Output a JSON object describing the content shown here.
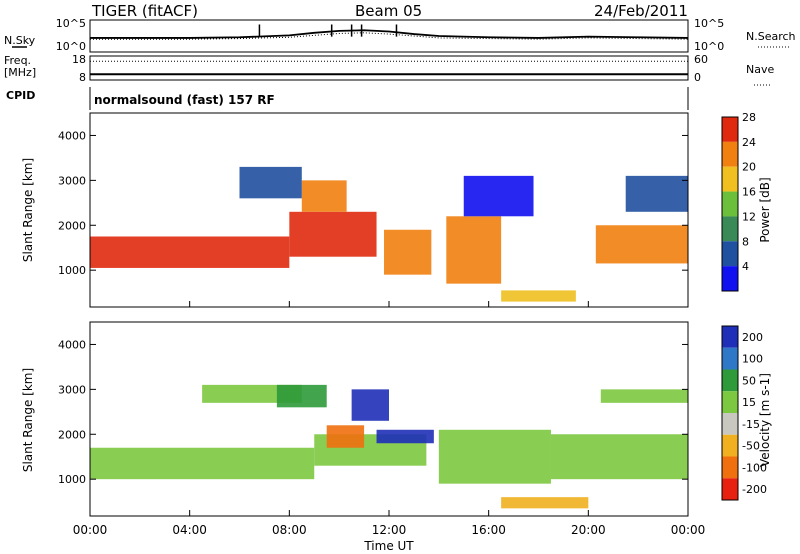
{
  "header": {
    "station": "TIGER (fitACF)",
    "beam": "Beam 05",
    "date": "24/Feb/2011"
  },
  "panel_labels": {
    "nsky": "N.Sky",
    "nsearch": "N.Search",
    "freq": "Freq.",
    "freq_unit": "[MHz]",
    "nave": "Nave",
    "cpid": "CPID",
    "cpid_value": "normalsound (fast) 157 RF"
  },
  "chart_data": [
    {
      "type": "line",
      "panel": "noise",
      "left_ticks": [
        "10^5",
        "10^0"
      ],
      "right_ticks": [
        "10^5",
        "10^0"
      ],
      "series": [
        {
          "name": "N.Sky",
          "x": [
            0,
            2,
            4,
            6,
            8,
            9,
            10,
            11,
            12,
            13,
            14,
            16,
            18,
            20,
            22,
            24
          ],
          "values": [
            2.2,
            2.2,
            2.2,
            2.3,
            2.6,
            3.0,
            3.3,
            3.4,
            3.2,
            2.8,
            2.5,
            2.3,
            2.2,
            2.4,
            2.3,
            2.2
          ]
        },
        {
          "name": "N.Search",
          "x": [
            0,
            2,
            4,
            6,
            8,
            9,
            10,
            11,
            12,
            13,
            14,
            16,
            18,
            20,
            22,
            24
          ],
          "values": [
            2.0,
            2.0,
            2.0,
            2.1,
            2.3,
            2.6,
            2.9,
            3.0,
            2.8,
            2.5,
            2.2,
            2.1,
            2.0,
            2.2,
            2.1,
            2.0
          ]
        }
      ],
      "spikes_x": [
        6.8,
        9.7,
        10.5,
        10.9,
        12.3
      ],
      "ylim": [
        0,
        5
      ]
    },
    {
      "type": "line",
      "panel": "frequency",
      "left_ticks": [
        "18",
        "8"
      ],
      "right_ticks": [
        "60",
        "0"
      ],
      "series": [
        {
          "name": "Freq.",
          "x": [
            0,
            24
          ],
          "values": [
            10.4,
            10.4
          ]
        },
        {
          "name": "Nave",
          "x": [
            0,
            24
          ],
          "values": [
            47,
            47
          ]
        }
      ],
      "ylim": [
        8,
        18
      ],
      "ylim_right": [
        0,
        60
      ]
    },
    {
      "type": "heatmap",
      "panel": "power",
      "ylabel": "Slant Range [km]",
      "y_ticks": [
        "1000",
        "2000",
        "3000",
        "4000"
      ],
      "ylim": [
        180,
        4500
      ],
      "xlim": [
        0,
        24
      ],
      "colorbar": {
        "label": "Power [dB]",
        "ticks": [
          "4",
          "8",
          "12",
          "16",
          "20",
          "24",
          "28"
        ],
        "colors": [
          "#1010f0",
          "#2050a0",
          "#3a8a58",
          "#6cbf3a",
          "#f0c020",
          "#f08010",
          "#e02a10"
        ]
      },
      "regions": [
        {
          "x": [
            0.0,
            8.0
          ],
          "y": [
            1050,
            1750
          ],
          "value": 27
        },
        {
          "x": [
            8.0,
            11.5
          ],
          "y": [
            1300,
            2300
          ],
          "value": 28
        },
        {
          "x": [
            8.5,
            10.3
          ],
          "y": [
            2300,
            3000
          ],
          "value": 26
        },
        {
          "x": [
            11.8,
            13.7
          ],
          "y": [
            900,
            1900
          ],
          "value": 26
        },
        {
          "x": [
            14.3,
            16.5
          ],
          "y": [
            700,
            2200
          ],
          "value": 24
        },
        {
          "x": [
            20.3,
            24.0
          ],
          "y": [
            1150,
            2000
          ],
          "value": 26
        },
        {
          "x": [
            6.0,
            8.5
          ],
          "y": [
            2600,
            3300
          ],
          "value": 8
        },
        {
          "x": [
            15.0,
            17.8
          ],
          "y": [
            2200,
            3100
          ],
          "value": 4
        },
        {
          "x": [
            21.5,
            24.0
          ],
          "y": [
            2300,
            3100
          ],
          "value": 8
        },
        {
          "x": [
            16.5,
            19.5
          ],
          "y": [
            300,
            550
          ],
          "value": 20
        }
      ]
    },
    {
      "type": "heatmap",
      "panel": "velocity",
      "ylabel": "Slant Range [km]",
      "xlabel": "Time UT",
      "y_ticks": [
        "1000",
        "2000",
        "3000",
        "4000"
      ],
      "x_ticks": [
        "00:00",
        "04:00",
        "08:00",
        "12:00",
        "16:00",
        "20:00",
        "00:00"
      ],
      "ylim": [
        180,
        4500
      ],
      "xlim": [
        0,
        24
      ],
      "colorbar": {
        "label": "Velocity [m s-1]",
        "ticks": [
          "200",
          "100",
          "50",
          "15",
          "-15",
          "-50",
          "-100",
          "-200"
        ],
        "colors": [
          "#1f2fb8",
          "#2f78c8",
          "#2e9a3a",
          "#7cc840",
          "#c8c8c0",
          "#f0b020",
          "#f07010",
          "#e82010"
        ]
      },
      "regions": [
        {
          "x": [
            0.0,
            9.0
          ],
          "y": [
            1000,
            1700
          ],
          "value": 0
        },
        {
          "x": [
            9.0,
            13.5
          ],
          "y": [
            1300,
            2000
          ],
          "value": 0
        },
        {
          "x": [
            4.5,
            8.5
          ],
          "y": [
            2700,
            3100
          ],
          "value": 0
        },
        {
          "x": [
            14.0,
            18.5
          ],
          "y": [
            900,
            2100
          ],
          "value": 0
        },
        {
          "x": [
            18.5,
            24.0
          ],
          "y": [
            1000,
            2000
          ],
          "value": 0
        },
        {
          "x": [
            20.5,
            24.0
          ],
          "y": [
            2700,
            3000
          ],
          "value": 0
        },
        {
          "x": [
            10.5,
            12.0
          ],
          "y": [
            2300,
            3000
          ],
          "value": 180
        },
        {
          "x": [
            11.5,
            13.8
          ],
          "y": [
            1800,
            2100
          ],
          "value": 150
        },
        {
          "x": [
            9.5,
            11.0
          ],
          "y": [
            1700,
            2200
          ],
          "value": -150
        },
        {
          "x": [
            7.5,
            9.5
          ],
          "y": [
            2600,
            3100
          ],
          "value": 40
        },
        {
          "x": [
            16.5,
            20.0
          ],
          "y": [
            350,
            600
          ],
          "value": -60
        }
      ]
    }
  ]
}
